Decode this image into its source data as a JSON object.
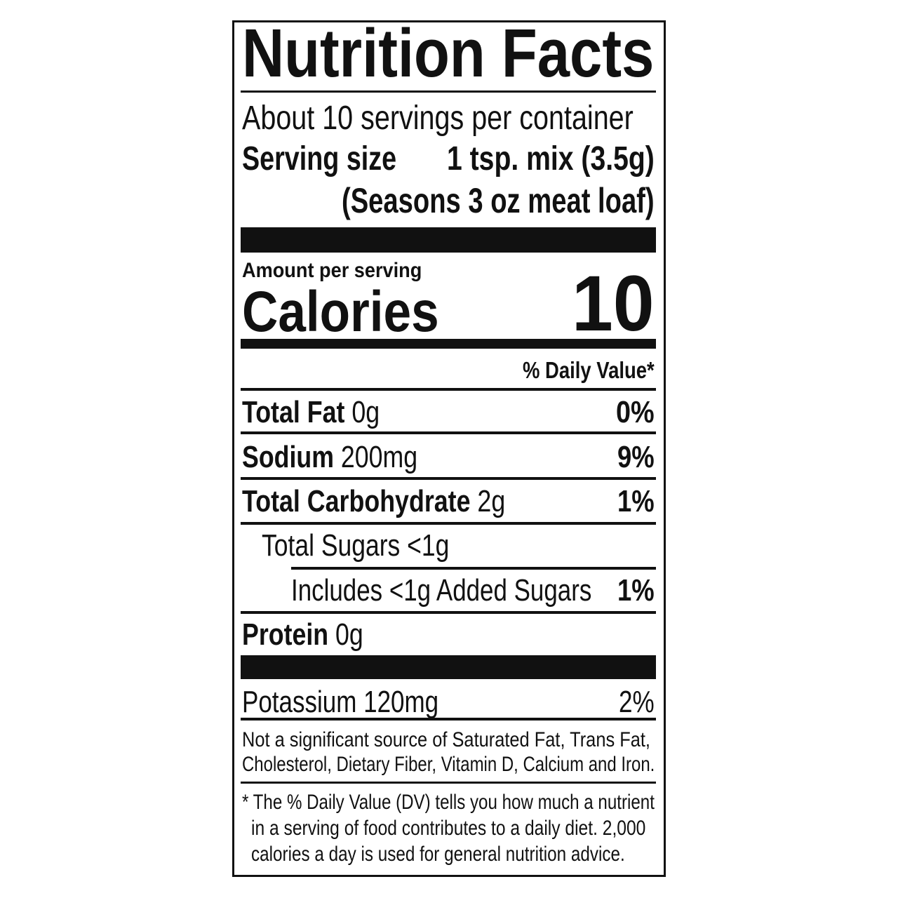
{
  "label": {
    "title": "Nutrition Facts",
    "servings_per_container": "About 10 servings per container",
    "serving_size_label": "Serving size",
    "serving_size_value": "1 tsp. mix (3.5g)",
    "serving_size_note": "(Seasons 3 oz meat loaf)",
    "amount_per_serving": "Amount per serving",
    "calories_label": "Calories",
    "calories_value": "10",
    "daily_value_header": "% Daily Value*",
    "nutrients": [
      {
        "name": "Total Fat",
        "amount": "0g",
        "dv": "0%"
      },
      {
        "name": "Sodium",
        "amount": "200mg",
        "dv": "9%"
      },
      {
        "name": "Total Carbohydrate",
        "amount": "2g",
        "dv": "1%"
      },
      {
        "name": "Total Sugars <1g",
        "amount": "",
        "dv": ""
      },
      {
        "name": "Includes <1g Added Sugars",
        "amount": "",
        "dv": "1%"
      },
      {
        "name": "Protein",
        "amount": "0g",
        "dv": ""
      },
      {
        "name": "Potassium 120mg",
        "amount": "",
        "dv": "2%"
      }
    ],
    "not_significant_line1": "Not a significant source of Saturated Fat, Trans Fat,",
    "not_significant_line2": "Cholesterol, Dietary Fiber, Vitamin D, Calcium and Iron.",
    "footnote_line1": "* The % Daily Value (DV) tells you how much a nutrient",
    "footnote_line2": "in a serving of food contributes to a daily diet. 2,000",
    "footnote_line3": "calories a day is used for general nutrition advice."
  }
}
